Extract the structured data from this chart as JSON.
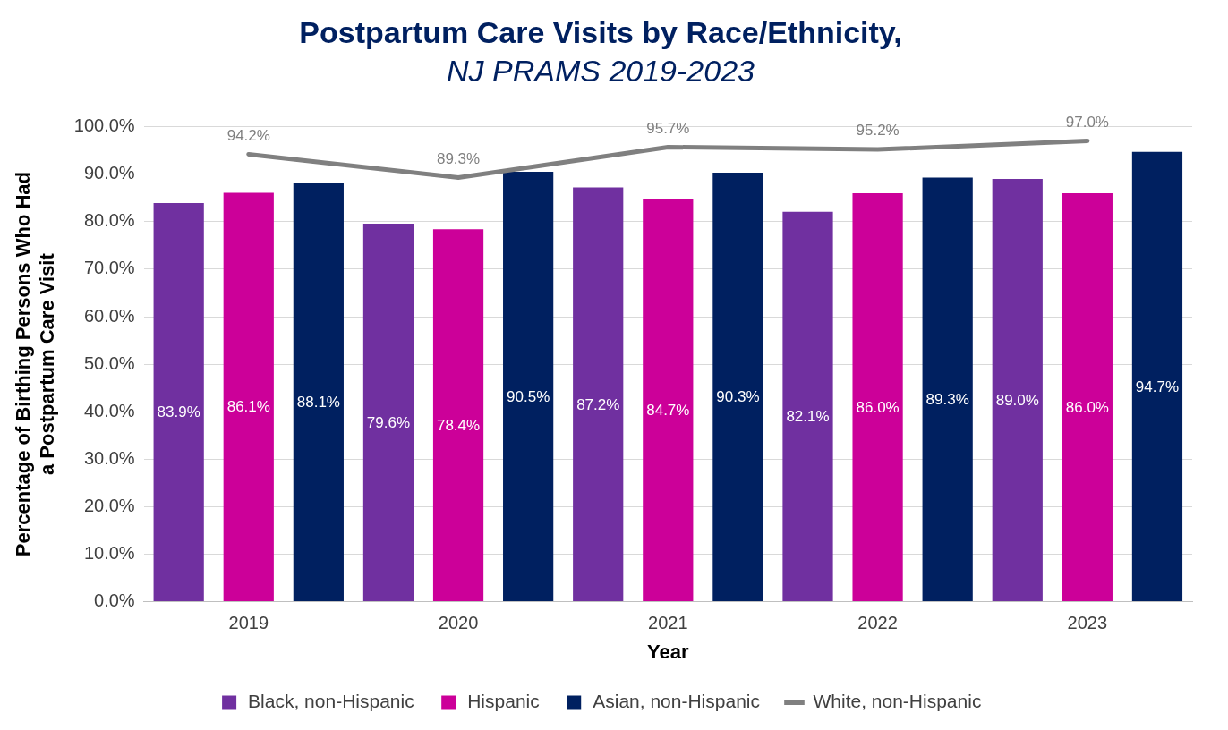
{
  "chart_data": {
    "type": "bar",
    "title": "Postpartum Care Visits by Race/Ethnicity,",
    "subtitle": "NJ PRAMS 2019-2023",
    "xlabel": "Year",
    "ylabel": "Percentage of Birthing Persons Who Had a Postpartum Care Visit",
    "categories": [
      "2019",
      "2020",
      "2021",
      "2022",
      "2023"
    ],
    "series": [
      {
        "name": "Black, non-Hispanic",
        "color": "#7030a0",
        "values": [
          83.9,
          79.6,
          87.2,
          82.1,
          89.0
        ],
        "value_labels": [
          "83.9%",
          "79.6%",
          "87.2%",
          "82.1%",
          "89.0%"
        ]
      },
      {
        "name": "Hispanic",
        "color": "#cc0099",
        "values": [
          86.1,
          78.4,
          84.7,
          86.0,
          86.0
        ],
        "value_labels": [
          "86.1%",
          "78.4%",
          "84.7%",
          "86.0%",
          "86.0%"
        ]
      },
      {
        "name": "Asian, non-Hispanic",
        "color": "#002060",
        "values": [
          88.1,
          90.5,
          90.3,
          89.3,
          94.7
        ],
        "value_labels": [
          "88.1%",
          "90.5%",
          "90.3%",
          "89.3%",
          "94.7%"
        ]
      },
      {
        "name": "White, non-Hispanic",
        "type": "line",
        "color": "#808080",
        "marker": "none",
        "values": [
          94.2,
          89.3,
          95.7,
          95.2,
          97.0
        ],
        "value_labels": [
          "94.2%",
          "89.3%",
          "95.7%",
          "95.2%",
          "97.0%"
        ]
      }
    ],
    "ylim": [
      0,
      100
    ],
    "yticks": [
      {
        "value": 0,
        "label": "0.0%"
      },
      {
        "value": 10,
        "label": "10.0%"
      },
      {
        "value": 20,
        "label": "20.0%"
      },
      {
        "value": 30,
        "label": "30.0%"
      },
      {
        "value": 40,
        "label": "40.0%"
      },
      {
        "value": 50,
        "label": "50.0%"
      },
      {
        "value": 60,
        "label": "60.0%"
      },
      {
        "value": 70,
        "label": "70.0%"
      },
      {
        "value": 80,
        "label": "80.0%"
      },
      {
        "value": 90,
        "label": "90.0%"
      },
      {
        "value": 100,
        "label": "100.0%"
      }
    ],
    "grid": "y",
    "legend": "bottom"
  }
}
